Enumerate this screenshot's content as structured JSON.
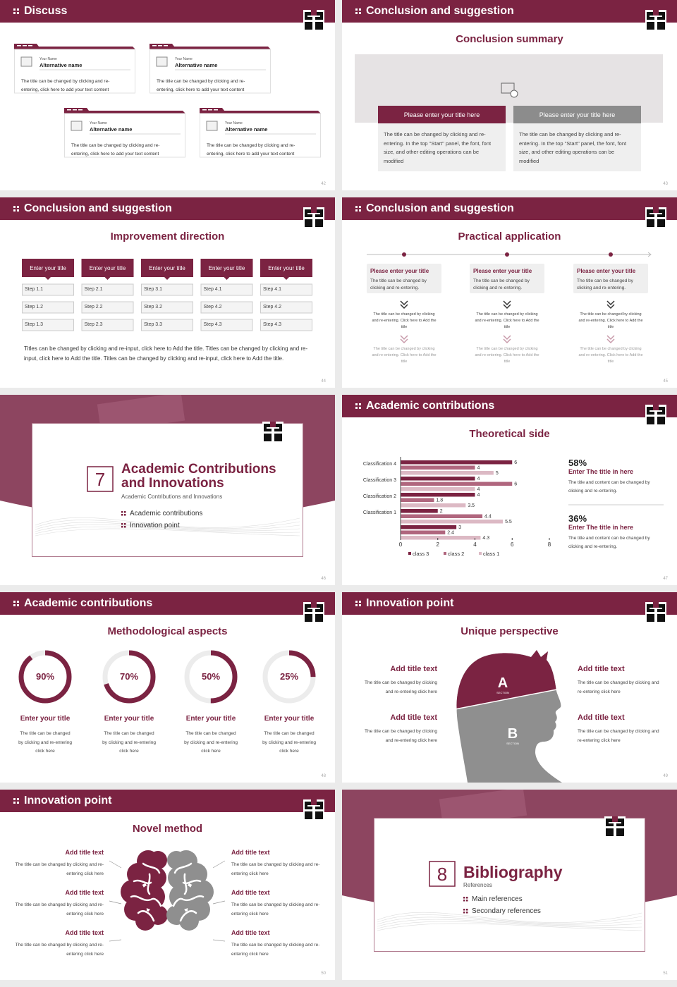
{
  "slides": [
    {
      "number": "42",
      "header": "Discuss",
      "cards": [
        {
          "name": "Your Name",
          "alt": "Alternative name",
          "text": "The title can be changed by clicking and re-entering, click here to add your text content"
        },
        {
          "name": "Your Name",
          "alt": "Alternative name",
          "text": "The title can be changed by clicking and re-entering, click here to add your text content"
        },
        {
          "name": "Your Name",
          "alt": "Alternative name",
          "text": "The title can be changed by clicking and re-entering, click here to add your text content"
        },
        {
          "name": "Your Name",
          "alt": "Alternative name",
          "text": "The title can be changed by clicking and re-entering, click here to add your text content"
        }
      ]
    },
    {
      "number": "43",
      "header": "Conclusion and suggestion",
      "title": "Conclusion summary",
      "boxes": [
        {
          "title": "Please enter your title here",
          "text": "The title can be changed by clicking and re-entering. In the top \"Start\" panel, the font, font size, and other editing operations can be modified"
        },
        {
          "title": "Please enter your title here",
          "text": "The title can be changed by clicking and re-entering. In the top \"Start\" panel, the font, font size, and other editing operations can be modified"
        }
      ]
    },
    {
      "number": "44",
      "header": "Conclusion and suggestion",
      "title": "Improvement direction",
      "columns": [
        {
          "title": "Enter your title",
          "steps": [
            "Step 1.1",
            "Step 1.2",
            "Step 1.3"
          ]
        },
        {
          "title": "Enter your title",
          "steps": [
            "Step 2.1",
            "Step 2.2",
            "Step 2.3"
          ]
        },
        {
          "title": "Enter your title",
          "steps": [
            "Step 3.1",
            "Step 3.2",
            "Step 3.3"
          ]
        },
        {
          "title": "Enter your title",
          "steps": [
            "Step 4.1",
            "Step 4.2",
            "Step 4.3"
          ]
        },
        {
          "title": "Enter your title",
          "steps": [
            "Step 4.1",
            "Step 4.2",
            "Step 4.3"
          ]
        }
      ],
      "note": "Titles can be changed by clicking and re-input, click here to Add the title. Titles can be changed by clicking and re-input, click here to Add the title. Titles can be changed by clicking and re-input, click here to Add the title."
    },
    {
      "number": "45",
      "header": "Conclusion and suggestion",
      "title": "Practical application",
      "items": [
        {
          "title": "Please enter your title",
          "text": "The title can be changed by clicking and re-entering.",
          "detail1": "The title can be changed by clicking and re-entering. Click here to Add the title",
          "detail2": "The title can be changed by clicking and re-entering. Click here to Add the title"
        },
        {
          "title": "Please enter your title",
          "text": "The title can be changed by clicking and re-entering.",
          "detail1": "The title can be changed by clicking and re-entering. Click here to Add the title",
          "detail2": "The title can be changed by clicking and re-entering. Click here to Add the title"
        },
        {
          "title": "Please enter your title",
          "text": "The title can be changed by clicking and re-entering.",
          "detail1": "The title can be changed by clicking and re-entering. Click here to Add the title",
          "detail2": "The title can be changed by clicking and re-entering. Click here to Add the title"
        }
      ]
    },
    {
      "number": "46",
      "section_number": "7",
      "title": "Academic Contributions and Innovations",
      "subtitle": "Academic Contributions and Innovations",
      "items": [
        "Academic contributions",
        "Innovation point"
      ]
    },
    {
      "number": "47",
      "header": "Academic contributions",
      "title": "Theoretical side",
      "chart_data": {
        "type": "bar",
        "categories": [
          "Classification 4",
          "Classification 3",
          "Classification 2",
          "Classification 1",
          null
        ],
        "series": [
          {
            "name": "class 3",
            "color": "#7b2342",
            "values": [
              6,
              4,
              4,
              2,
              3
            ]
          },
          {
            "name": "class 2",
            "color": "#b0667e",
            "values": [
              4,
              6,
              1.8,
              4.4,
              2.4
            ]
          },
          {
            "name": "class 1",
            "color": "#dcb9c4",
            "values": [
              5,
              4,
              3.5,
              5.5,
              4.3
            ]
          }
        ],
        "xlim": [
          0,
          8
        ],
        "xticks": [
          0,
          2,
          4,
          6,
          8
        ]
      },
      "stats": [
        {
          "value": "58%",
          "title": "Enter The title in here",
          "text": "The title and content can be changed by clicking and re-entering."
        },
        {
          "value": "36%",
          "title": "Enter The title in here",
          "text": "The title and content can be changed by clicking and re-entering."
        }
      ]
    },
    {
      "number": "48",
      "header": "Academic contributions",
      "title": "Methodological aspects",
      "rings": {
        "values": [
          90,
          70,
          50,
          25
        ],
        "value_labels": [
          "90%",
          "70%",
          "50%",
          "25%"
        ]
      },
      "items": [
        {
          "title": "Enter your title",
          "text": "The title can be changed by clicking and re-entering click here"
        },
        {
          "title": "Enter your title",
          "text": "The title can be changed by clicking and re-entering click here"
        },
        {
          "title": "Enter your title",
          "text": "The title can be changed by clicking and re-entering click here"
        },
        {
          "title": "Enter your title",
          "text": "The title can be changed by clicking and re-entering click here"
        }
      ]
    },
    {
      "number": "49",
      "header": "Innovation point",
      "title": "Unique perspective",
      "labels": [
        "A",
        "B"
      ],
      "label_sub": "SECTION",
      "items": [
        {
          "title": "Add title text",
          "text": "The title can be changed by clicking and re-entering click here"
        },
        {
          "title": "Add title text",
          "text": "The title can be changed by clicking and re-entering click here"
        },
        {
          "title": "Add title text",
          "text": "The title can be changed by clicking and re-entering click here"
        },
        {
          "title": "Add title text",
          "text": "The title can be changed by clicking and re-entering click here"
        }
      ]
    },
    {
      "number": "50",
      "header": "Innovation point",
      "title": "Novel method",
      "items": [
        {
          "title": "Add title text",
          "text": "The title can be changed by clicking and re-entering click here"
        },
        {
          "title": "Add title text",
          "text": "The title can be changed by clicking and re-entering click here"
        },
        {
          "title": "Add title text",
          "text": "The title can be changed by clicking and re-entering click here"
        },
        {
          "title": "Add title text",
          "text": "The title can be changed by clicking and re-entering click here"
        },
        {
          "title": "Add title text",
          "text": "The title can be changed by clicking and re-entering click here"
        },
        {
          "title": "Add title text",
          "text": "The title can be changed by clicking and re-entering click here"
        }
      ]
    },
    {
      "number": "51",
      "section_number": "8",
      "title": "Bibliography",
      "subtitle": "References",
      "items": [
        "Main references",
        "Secondary references"
      ]
    }
  ]
}
